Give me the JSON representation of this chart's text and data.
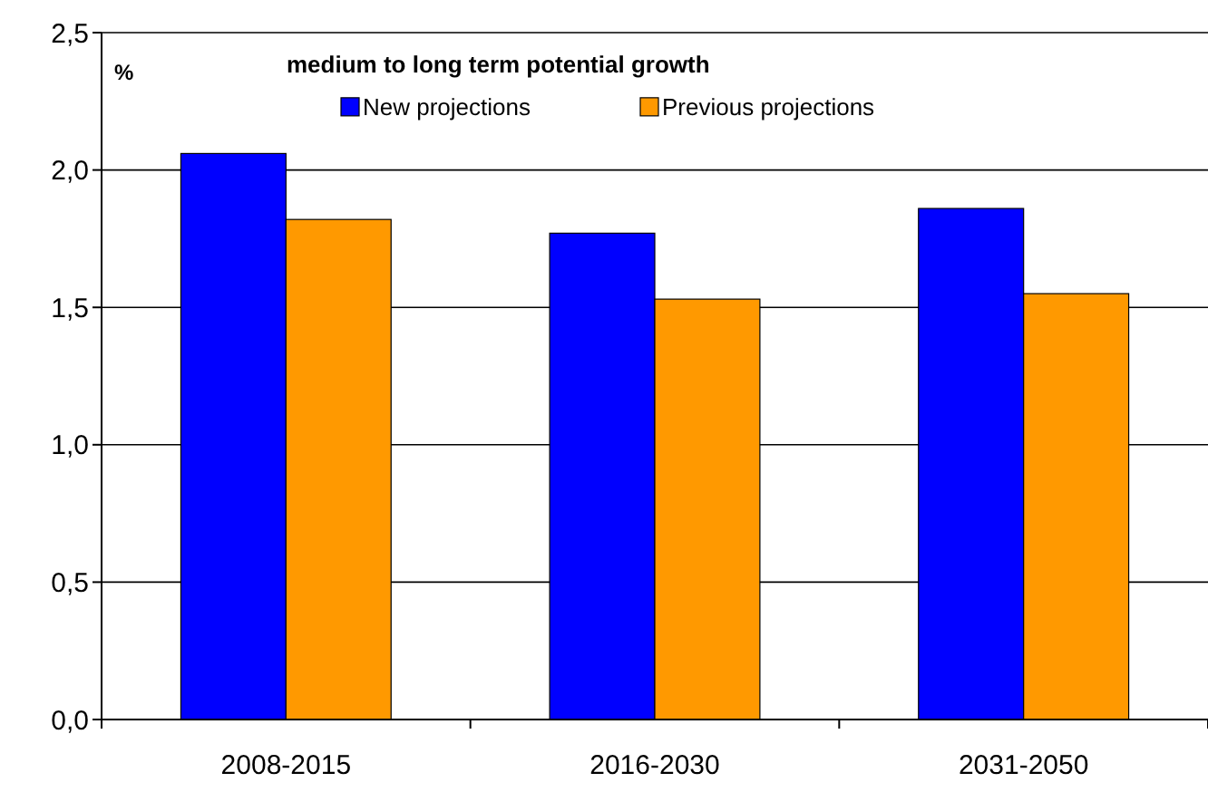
{
  "chart_data": {
    "type": "bar",
    "title": "medium to long term potential growth",
    "ylabel": "%",
    "categories": [
      "2008-2015",
      "2016-2030",
      "2031-2050"
    ],
    "series": [
      {
        "name": "New projections",
        "color": "#0000ff",
        "values": [
          2.06,
          1.77,
          1.86
        ]
      },
      {
        "name": "Previous projections",
        "color": "#ff9900",
        "values": [
          1.82,
          1.53,
          1.55
        ]
      }
    ],
    "ylim": [
      0,
      2.5
    ],
    "yticks": [
      {
        "value": 0,
        "label": "0,0"
      },
      {
        "value": 0.5,
        "label": "0,5"
      },
      {
        "value": 1,
        "label": "1,0"
      },
      {
        "value": 1.5,
        "label": "1,5"
      },
      {
        "value": 2,
        "label": "2,0"
      },
      {
        "value": 2.5,
        "label": "2,5"
      }
    ],
    "grid": "y",
    "legend": "top"
  }
}
